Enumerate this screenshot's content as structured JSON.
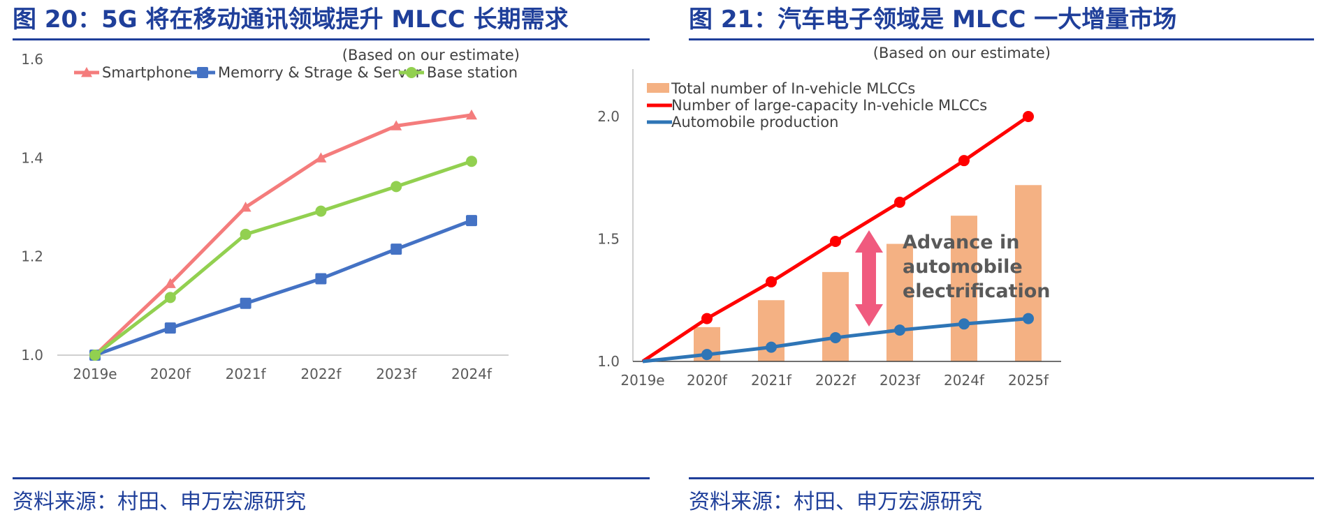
{
  "left": {
    "title": "图 20：5G 将在移动通讯领域提升 MLCC 长期需求",
    "source": "资料来源：村田、申万宏源研究"
  },
  "right": {
    "title": "图 21：汽车电子领域是 MLCC 一大增量市场",
    "source": "资料来源：村田、申万宏源研究"
  },
  "chart_data": [
    {
      "type": "line",
      "note": "(Based on our estimate)",
      "categories": [
        "2019e",
        "2020f",
        "2021f",
        "2022f",
        "2023f",
        "2024f"
      ],
      "ylim": [
        1.0,
        1.6
      ],
      "yticks": [
        "1.0",
        "1.2",
        "1.4",
        "1.6"
      ],
      "grid": false,
      "legend_position": "top",
      "series": [
        {
          "name": "Smartphone",
          "color": "#f47c7c",
          "marker": "triangle",
          "values": [
            1.0,
            1.145,
            1.3,
            1.4,
            1.465,
            1.487
          ]
        },
        {
          "name": "Memorry & Strage & Server",
          "color": "#4472c4",
          "marker": "square",
          "values": [
            1.0,
            1.055,
            1.105,
            1.155,
            1.215,
            1.273
          ]
        },
        {
          "name": "Base station",
          "color": "#92d050",
          "marker": "circle",
          "values": [
            1.0,
            1.117,
            1.245,
            1.292,
            1.342,
            1.393
          ]
        }
      ]
    },
    {
      "type": "bar+line",
      "note": "(Based on our estimate)",
      "categories": [
        "2019e",
        "2020f",
        "2021f",
        "2022f",
        "2023f",
        "2024f",
        "2025f"
      ],
      "ylim": [
        1.0,
        2.2
      ],
      "yticks": [
        "1.0",
        "1.5",
        "2.0"
      ],
      "grid": false,
      "legend_position": "top-left",
      "annotation": [
        "Advance in",
        "automobile",
        "electrification"
      ],
      "series": [
        {
          "name": "Total number of In-vehicle MLCCs",
          "type": "bar",
          "color": "#f4b183",
          "values": [
            null,
            1.14,
            1.25,
            1.365,
            1.48,
            1.595,
            1.72
          ]
        },
        {
          "name": "Number of large-capacity In-vehicle MLCCs",
          "type": "line",
          "color": "#ff0000",
          "values": [
            1.0,
            1.175,
            1.325,
            1.49,
            1.65,
            1.82,
            2.0
          ]
        },
        {
          "name": "Automobile production",
          "type": "line",
          "color": "#2e75b6",
          "values": [
            1.0,
            1.028,
            1.058,
            1.097,
            1.128,
            1.153,
            1.175
          ]
        }
      ]
    }
  ]
}
